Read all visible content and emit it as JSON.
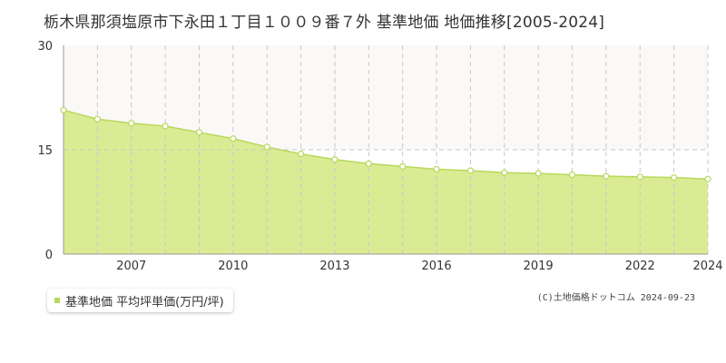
{
  "title": "栃木県那須塩原市下永田１丁目１００９番７外 基準地価 地価推移[2005-2024]",
  "legend": {
    "label": "基準地価 平均坪単価(万円/坪)"
  },
  "copyright": "(C)土地価格ドットコム 2024-09-23",
  "colors": {
    "area_fill": "#dbeb93",
    "line": "#b8d85a",
    "point_fill": "#ffffff",
    "band_fill": "#fbf8f8",
    "grid": "#c8c8c8",
    "axis_text": "#333333"
  },
  "chart_data": {
    "type": "area",
    "x": [
      2005,
      2006,
      2007,
      2008,
      2009,
      2010,
      2011,
      2012,
      2013,
      2014,
      2015,
      2016,
      2017,
      2018,
      2019,
      2020,
      2021,
      2022,
      2023,
      2024
    ],
    "series": [
      {
        "name": "基準地価 平均坪単価(万円/坪)",
        "values": [
          20.7,
          19.4,
          18.8,
          18.4,
          17.5,
          16.6,
          15.4,
          14.4,
          13.6,
          13.0,
          12.6,
          12.2,
          12.0,
          11.7,
          11.6,
          11.4,
          11.2,
          11.1,
          11.0,
          10.8
        ]
      }
    ],
    "ylim": [
      0,
      30
    ],
    "y_ticks": [
      "0",
      "15",
      "30"
    ],
    "x_ticks": [
      "2007",
      "2010",
      "2013",
      "2016",
      "2019",
      "2022",
      "2024"
    ],
    "grid": true
  }
}
